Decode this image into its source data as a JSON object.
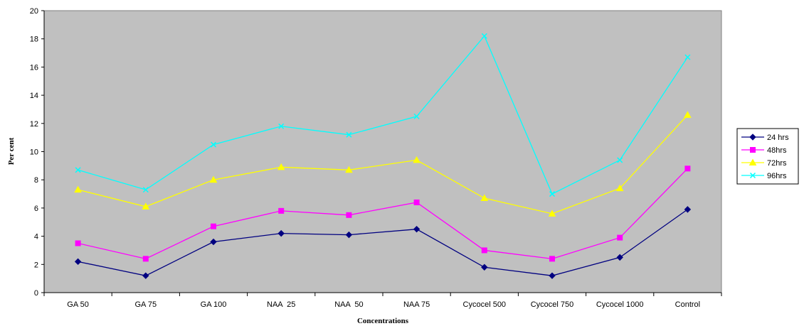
{
  "chart_data": {
    "type": "line",
    "title": "",
    "xlabel": "Concentrations",
    "ylabel": "Per cent",
    "categories": [
      "GA 50",
      "GA 75",
      "GA 100",
      "NAA  25",
      "NAA  50",
      "NAA 75",
      "Cycocel 500",
      "Cycocel 750",
      "Cycocel 1000",
      "Control"
    ],
    "ylim": [
      0,
      20
    ],
    "yticks": [
      0,
      2,
      4,
      6,
      8,
      10,
      12,
      14,
      16,
      18,
      20
    ],
    "grid": false,
    "plot_background": "#c0c0c0",
    "legend_position": "right",
    "series": [
      {
        "name": "24 hrs",
        "color": "#000080",
        "marker": "diamond",
        "values": [
          2.2,
          1.2,
          3.6,
          4.2,
          4.1,
          4.5,
          1.8,
          1.2,
          2.5,
          5.9
        ]
      },
      {
        "name": "48hrs",
        "color": "#ff00ff",
        "marker": "square",
        "values": [
          3.5,
          2.4,
          4.7,
          5.8,
          5.5,
          6.4,
          3.0,
          2.4,
          3.9,
          8.8
        ]
      },
      {
        "name": "72hrs",
        "color": "#ffff00",
        "marker": "triangle",
        "values": [
          7.3,
          6.1,
          8.0,
          8.9,
          8.7,
          9.4,
          6.7,
          5.6,
          7.4,
          12.6
        ]
      },
      {
        "name": "96hrs",
        "color": "#00ffff",
        "marker": "x",
        "values": [
          8.7,
          7.3,
          10.5,
          11.8,
          11.2,
          12.5,
          18.2,
          7.0,
          9.4,
          16.7
        ]
      }
    ]
  }
}
